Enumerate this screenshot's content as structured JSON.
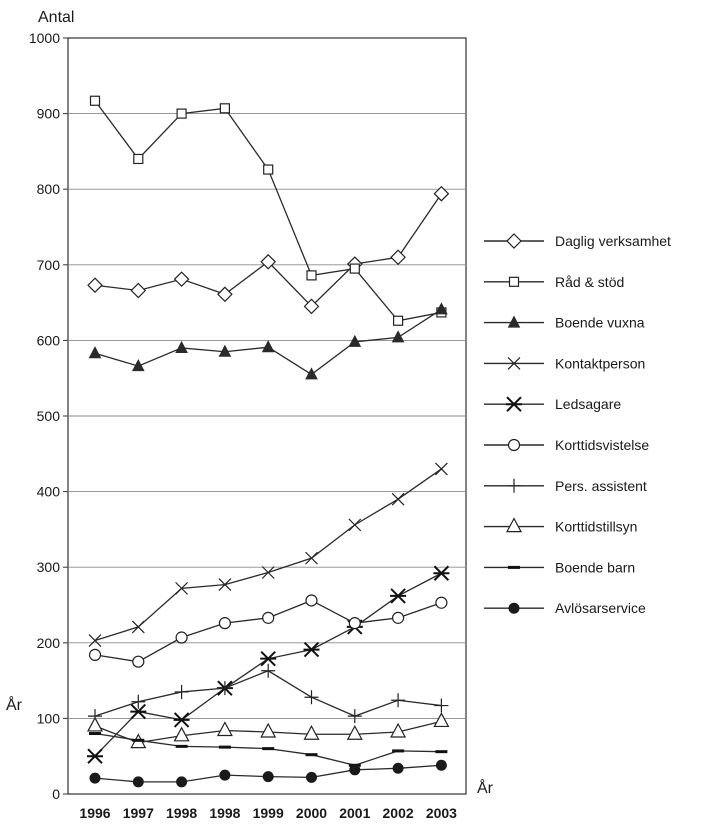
{
  "chart_data": {
    "type": "line",
    "ylabel": "Antal",
    "xlabel": "År",
    "ylabel_secondary": "År",
    "categories": [
      "1996",
      "1997",
      "1998",
      "1998",
      "1999",
      "2000",
      "2001",
      "2002",
      "2003"
    ],
    "ylim": [
      0,
      1000
    ],
    "yticks": [
      0,
      100,
      200,
      300,
      400,
      500,
      600,
      700,
      800,
      900,
      1000
    ],
    "grid": true,
    "legend_position": "right",
    "series": [
      {
        "name": "Daglig verksamhet",
        "marker": "diamond",
        "values": [
          673,
          666,
          681,
          661,
          704,
          645,
          701,
          710,
          794
        ]
      },
      {
        "name": "Råd & stöd",
        "marker": "square",
        "values": [
          917,
          840,
          900,
          907,
          826,
          686,
          695,
          626,
          637
        ]
      },
      {
        "name": "Boende vuxna",
        "marker": "triangle-filled",
        "values": [
          583,
          566,
          590,
          585,
          591,
          555,
          598,
          604,
          641
        ]
      },
      {
        "name": "Kontaktperson",
        "marker": "x",
        "values": [
          203,
          221,
          272,
          277,
          293,
          312,
          356,
          390,
          430
        ]
      },
      {
        "name": "Ledsagare",
        "marker": "asterisk",
        "values": [
          50,
          109,
          98,
          140,
          179,
          191,
          221,
          262,
          292
        ]
      },
      {
        "name": "Korttidsvistelse",
        "marker": "circle",
        "values": [
          184,
          175,
          207,
          226,
          233,
          256,
          226,
          233,
          253
        ]
      },
      {
        "name": "Pers. assistent",
        "marker": "plus",
        "values": [
          103,
          122,
          135,
          140,
          163,
          128,
          103,
          124,
          117
        ]
      },
      {
        "name": "Korttidstillsyn",
        "marker": "triangle-open",
        "values": [
          90,
          68,
          77,
          84,
          82,
          79,
          79,
          82,
          96
        ]
      },
      {
        "name": "Boende barn",
        "marker": "dash",
        "values": [
          80,
          71,
          63,
          62,
          60,
          52,
          38,
          57,
          56
        ]
      },
      {
        "name": "Avlösarservice",
        "marker": "dot",
        "values": [
          21,
          16,
          16,
          25,
          23,
          22,
          32,
          34,
          38
        ]
      }
    ]
  }
}
